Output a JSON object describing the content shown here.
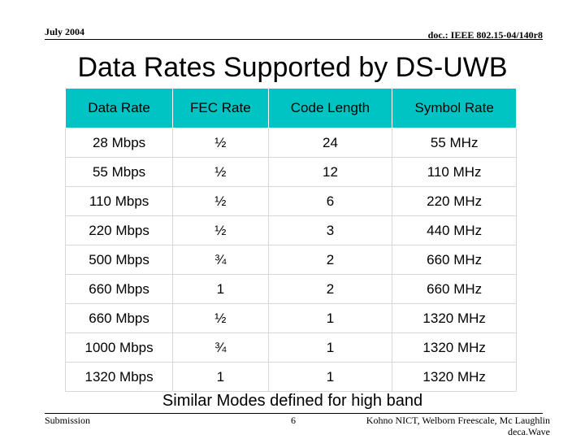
{
  "header": {
    "date": "July 2004",
    "doc": "doc.: IEEE 802.15-04/140r8"
  },
  "title": "Data Rates Supported by DS-UWB",
  "table": {
    "columns": [
      "Data Rate",
      "FEC Rate",
      "Code Length",
      "Symbol Rate"
    ],
    "rows": [
      [
        "28 Mbps",
        "½",
        "24",
        "55 MHz"
      ],
      [
        "55 Mbps",
        "½",
        "12",
        "110 MHz"
      ],
      [
        "110 Mbps",
        "½",
        "6",
        "220 MHz"
      ],
      [
        "220 Mbps",
        "½",
        "3",
        "440 MHz"
      ],
      [
        "500 Mbps",
        "¾",
        "2",
        "660 MHz"
      ],
      [
        "660 Mbps",
        "1",
        "2",
        "660 MHz"
      ],
      [
        "660 Mbps",
        "½",
        "1",
        "1320 MHz"
      ],
      [
        "1000 Mbps",
        "¾",
        "1",
        "1320 MHz"
      ],
      [
        "1320 Mbps",
        "1",
        "1",
        "1320 MHz"
      ]
    ]
  },
  "note": "Similar Modes defined for high band",
  "footer": {
    "left": "Submission",
    "page": "6",
    "authors": [
      "Kohno NICT, Welborn Freescale, Mc Laughlin",
      "deca.Wave"
    ]
  }
}
